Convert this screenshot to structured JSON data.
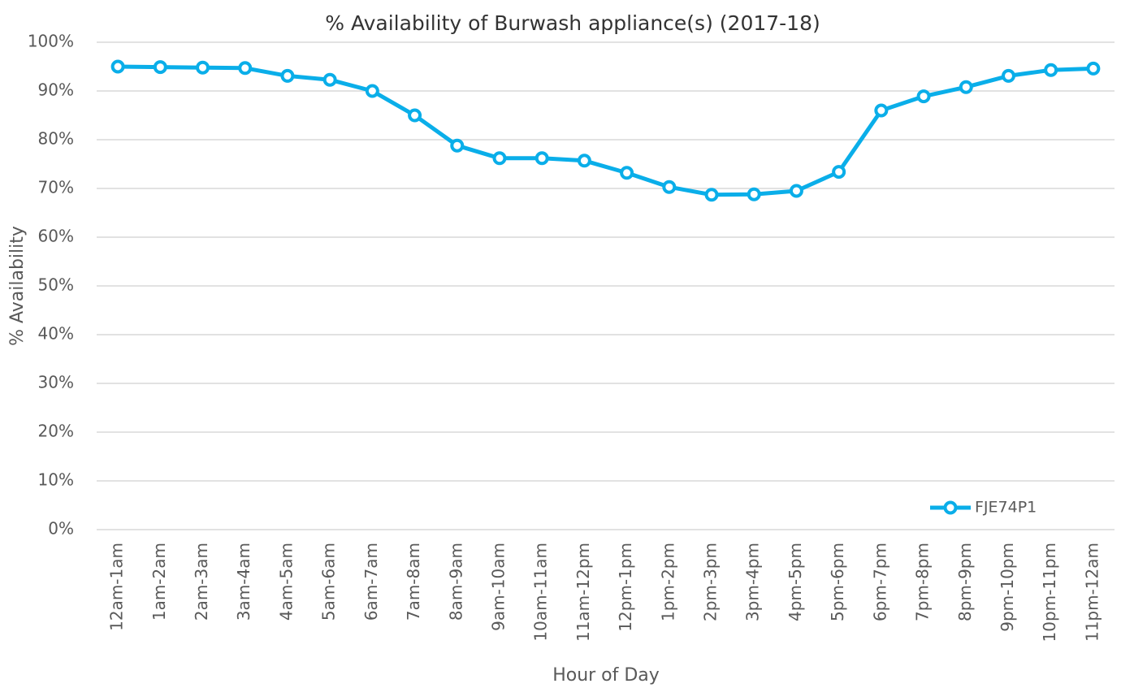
{
  "chart_data": {
    "type": "line",
    "title": "% Availability of Burwash appliance(s) (2017-18)",
    "x_label": "Hour of Day",
    "y_label": "% Availability",
    "categories": [
      "12am-1am",
      "1am-2am",
      "2am-3am",
      "3am-4am",
      "4am-5am",
      "5am-6am",
      "6am-7am",
      "7am-8am",
      "8am-9am",
      "9am-10am",
      "10am-11am",
      "11am-12pm",
      "12pm-1pm",
      "1pm-2pm",
      "2pm-3pm",
      "3pm-4pm",
      "4pm-5pm",
      "5pm-6pm",
      "6pm-7pm",
      "7pm-8pm",
      "8pm-9pm",
      "9pm-10pm",
      "10pm-11pm",
      "11pm-12am"
    ],
    "series": [
      {
        "name": "FJE74P1",
        "color": "#0aaee9",
        "values": [
          95.0,
          94.9,
          94.8,
          94.7,
          93.1,
          92.3,
          90.0,
          85.0,
          78.8,
          76.2,
          76.2,
          75.7,
          73.2,
          70.3,
          68.7,
          68.8,
          69.5,
          73.4,
          86.0,
          88.9,
          90.8,
          93.1,
          94.3,
          94.6
        ]
      }
    ],
    "ylim": [
      0,
      100
    ],
    "yticks": [
      {
        "value": 0,
        "label": "0%"
      },
      {
        "value": 10,
        "label": "10%"
      },
      {
        "value": 20,
        "label": "20%"
      },
      {
        "value": 30,
        "label": "30%"
      },
      {
        "value": 40,
        "label": "40%"
      },
      {
        "value": 50,
        "label": "50%"
      },
      {
        "value": 60,
        "label": "60%"
      },
      {
        "value": 70,
        "label": "70%"
      },
      {
        "value": 80,
        "label": "80%"
      },
      {
        "value": 90,
        "label": "90%"
      },
      {
        "value": 100,
        "label": "100%"
      }
    ],
    "grid": true,
    "legend_position": "lower right"
  }
}
